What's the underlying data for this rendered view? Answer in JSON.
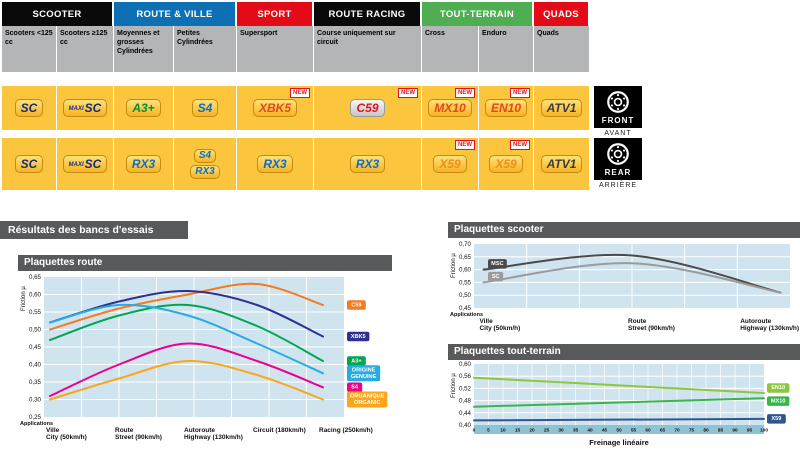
{
  "colors": {
    "header_black": "#0a0a0a",
    "header_blue": "#0d6fb4",
    "header_red": "#e30b17",
    "header_green": "#4eae51",
    "subheader_gray": "#b4b5b7",
    "row_yellow": "#fbc53d",
    "band_gray": "#58595b",
    "chart_bg": "#cfe4ef"
  },
  "matrix": {
    "groups": [
      {
        "label": "SCOOTER",
        "color": "#0a0a0a"
      },
      {
        "label": "ROUTE & VILLE",
        "color": "#0d6fb4"
      },
      {
        "label": "SPORT",
        "color": "#e30b17"
      },
      {
        "label": "ROUTE RACING",
        "color": "#0a0a0a"
      },
      {
        "label": "TOUT-TERRAIN",
        "color": "#4eae51"
      },
      {
        "label": "QUADS",
        "color": "#e30b17"
      }
    ],
    "columns": [
      "Scooters <125 cc",
      "Scooters ≥125 cc",
      "Moyennes et grosses Cylindrées",
      "Petites Cylindrées",
      "Supersport",
      "Course uniquement sur circuit",
      "Cross",
      "Enduro",
      "Quads"
    ],
    "new_label": "NEW",
    "front_row": [
      {
        "badges": [
          "SC"
        ]
      },
      {
        "badges": [
          "MAXI SC"
        ]
      },
      {
        "badges": [
          "A3+"
        ]
      },
      {
        "badges": [
          "S4"
        ]
      },
      {
        "badges": [
          "XBK5"
        ],
        "new": true
      },
      {
        "badges": [
          "C59"
        ],
        "new": true
      },
      {
        "badges": [
          "MX10"
        ],
        "new": true
      },
      {
        "badges": [
          "EN10"
        ],
        "new": true
      },
      {
        "badges": [
          "ATV1"
        ]
      }
    ],
    "rear_row": [
      {
        "badges": [
          "SC"
        ]
      },
      {
        "badges": [
          "MAXI SC"
        ]
      },
      {
        "badges": [
          "RX3"
        ]
      },
      {
        "badges": [
          "S4",
          "RX3"
        ]
      },
      {
        "badges": [
          "RX3"
        ]
      },
      {
        "badges": [
          "RX3"
        ]
      },
      {
        "badges": [
          "X59"
        ],
        "new": true
      },
      {
        "badges": [
          "X59"
        ],
        "new": true
      },
      {
        "badges": [
          "ATV1"
        ]
      }
    ]
  },
  "sides": {
    "front": {
      "label": "FRONT",
      "sub": "AVANT"
    },
    "rear": {
      "label": "REAR",
      "sub": "ARRIÈRE"
    }
  },
  "results_title": "Résultats des bancs d'essais",
  "chart_data": [
    {
      "type": "line",
      "title": "Plaquettes route",
      "ylabel": "Friction µ",
      "corner_label": "Applications",
      "ylim": [
        0.25,
        0.65
      ],
      "ystep": 0.05,
      "grid": true,
      "categories": [
        {
          "fr": "Ville",
          "en": "City",
          "speed": "(50km/h)"
        },
        {
          "fr": "Route",
          "en": "Street",
          "speed": "(90km/h)"
        },
        {
          "fr": "Autoroute",
          "en": "Highway",
          "speed": "(130km/h)"
        },
        {
          "fr": "Circuit",
          "en": "",
          "speed": "(180km/h)"
        },
        {
          "fr": "Racing",
          "en": "",
          "speed": "(250km/h)"
        }
      ],
      "series": [
        {
          "name": "C59",
          "label": [
            "C59"
          ],
          "color": "#f47b20",
          "values": [
            0.5,
            0.56,
            0.6,
            0.63,
            0.57
          ]
        },
        {
          "name": "XBK5",
          "label": [
            "XBK5"
          ],
          "color": "#2e3192",
          "values": [
            0.52,
            0.58,
            0.61,
            0.57,
            0.48
          ]
        },
        {
          "name": "A3+",
          "label": [
            "A3+"
          ],
          "color": "#00a651",
          "values": [
            0.47,
            0.54,
            0.57,
            0.51,
            0.41
          ]
        },
        {
          "name": "ORIGINE / GENUINE",
          "label": [
            "ORIGINE",
            "GENUINE"
          ],
          "color": "#29abe2",
          "values": [
            0.52,
            0.57,
            0.54,
            0.46,
            0.375
          ]
        },
        {
          "name": "S4",
          "label": [
            "S4"
          ],
          "color": "#ec008c",
          "values": [
            0.31,
            0.4,
            0.46,
            0.41,
            0.335
          ]
        },
        {
          "name": "ORGANIQUE / ORGANIC",
          "label": [
            "ORGANIQUE",
            "ORGANIC"
          ],
          "color": "#faa61a",
          "values": [
            0.3,
            0.36,
            0.41,
            0.37,
            0.3
          ]
        }
      ]
    },
    {
      "type": "line",
      "title": "Plaquettes scooter",
      "ylabel": "Friction µ",
      "corner_label": "Applications",
      "ylim": [
        0.45,
        0.7
      ],
      "ystep": 0.05,
      "grid": true,
      "categories": [
        {
          "fr": "Ville",
          "en": "City",
          "speed": "(50km/h)"
        },
        {
          "fr": "Route",
          "en": "Street",
          "speed": "(90km/h)"
        },
        {
          "fr": "Autoroute",
          "en": "Highway",
          "speed": "(130km/h)"
        }
      ],
      "series": [
        {
          "name": "MSC",
          "label": [
            "MSC"
          ],
          "color": "#4a4a4a",
          "values": [
            0.6,
            0.655,
            0.51
          ]
        },
        {
          "name": "SC",
          "label": [
            "SC"
          ],
          "color": "#9b9b9b",
          "values": [
            0.55,
            0.625,
            0.51
          ]
        }
      ]
    },
    {
      "type": "line",
      "title": "Plaquettes tout-terrain",
      "ylabel": "Friction µ",
      "xlabel": "Freinage linéaire",
      "ylim": [
        0.4,
        0.6
      ],
      "ystep": 0.04,
      "xlim": [
        0,
        100
      ],
      "xtick_step": 5,
      "grid": true,
      "series": [
        {
          "name": "EN10",
          "label": [
            "EN10"
          ],
          "color": "#8dc63f",
          "x": [
            0,
            100
          ],
          "values": [
            0.555,
            0.505
          ]
        },
        {
          "name": "MX10",
          "label": [
            "MX10"
          ],
          "color": "#39b54a",
          "x": [
            0,
            100
          ],
          "values": [
            0.46,
            0.488
          ]
        },
        {
          "name": "X59",
          "label": [
            "X59"
          ],
          "color": "#31558d",
          "x": [
            0,
            100
          ],
          "values": [
            0.415,
            0.42
          ]
        }
      ]
    }
  ]
}
